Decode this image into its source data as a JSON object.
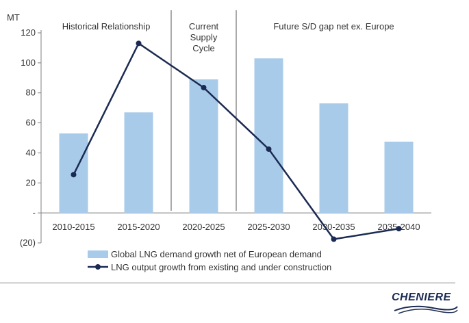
{
  "chart_data": {
    "type": "bar+line",
    "y_unit_label": "MT",
    "categories": [
      "2010-2015",
      "2015-2020",
      "2020-2025",
      "2025-2030",
      "2030-2035",
      "2035-2040"
    ],
    "series": [
      {
        "name": "Global LNG demand growth net of European demand",
        "type": "bar",
        "values": [
          53,
          67,
          89,
          103,
          73,
          47.5
        ]
      },
      {
        "name": "LNG output growth from existing and under construction",
        "type": "line",
        "values": [
          25.5,
          113,
          83.5,
          42.5,
          -17.5,
          -10.5
        ]
      }
    ],
    "ylim": [
      -20,
      120
    ],
    "yticks": [
      -20,
      0,
      20,
      40,
      60,
      80,
      100,
      120
    ],
    "ytick_labels": [
      "(20)",
      "-",
      "20",
      "40",
      "60",
      "80",
      "100",
      "120"
    ],
    "regions": [
      {
        "label": [
          "Historical Relationship"
        ],
        "from": 0,
        "to": 2
      },
      {
        "label": [
          "Current",
          "Supply",
          "Cycle"
        ],
        "from": 2,
        "to": 3
      },
      {
        "label": [
          "Future S/D gap net ex. Europe"
        ],
        "from": 3,
        "to": 6
      }
    ],
    "legend_position": "bottom",
    "colors": {
      "bar": "#a9cbea",
      "line": "#1b2a52",
      "axis": "#7f7f7f"
    }
  },
  "logo": {
    "text": "CHENIERE"
  }
}
